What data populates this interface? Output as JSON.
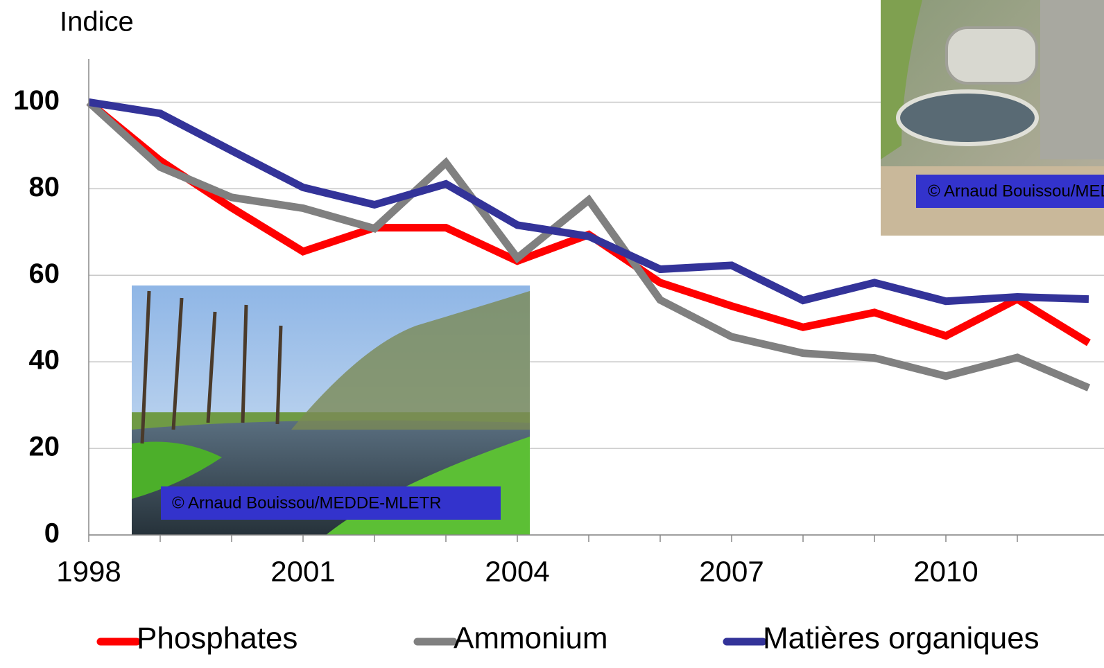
{
  "chart_data": {
    "type": "line",
    "y_label": "Indice",
    "x": [
      1998,
      1999,
      2000,
      2001,
      2002,
      2003,
      2004,
      2005,
      2006,
      2007,
      2008,
      2009,
      2010,
      2011,
      2012
    ],
    "series": [
      {
        "name": "Phosphates",
        "color": "#ff0000",
        "values": [
          100,
          86.5,
          75.6,
          65.5,
          71,
          71,
          63.3,
          69.4,
          58.3,
          52.9,
          48,
          51.4,
          46,
          54.5,
          44.4
        ]
      },
      {
        "name": "Ammonium",
        "color": "#808080",
        "values": [
          100,
          85,
          78,
          75.5,
          70.8,
          86,
          64,
          77.4,
          54.3,
          45.8,
          42,
          40.9,
          36.7,
          41,
          34
        ]
      },
      {
        "name": "Matières organiques",
        "color": "#333399",
        "values": [
          100,
          97.4,
          88.8,
          80.3,
          76.3,
          81.1,
          71.6,
          69,
          61.4,
          62.3,
          54.2,
          58.3,
          54,
          55,
          54.5
        ]
      }
    ],
    "xlim": [
      1998,
      2012
    ],
    "xticks": [
      1998,
      2001,
      2004,
      2007,
      2010
    ],
    "xminorticks": [
      1999,
      2000,
      2002,
      2003,
      2005,
      2006,
      2008,
      2009,
      2011
    ],
    "ylim": [
      0,
      110
    ],
    "yticks": [
      0,
      20,
      40,
      60,
      80,
      100
    ],
    "grid": true,
    "legend": "bottom",
    "annotations": [
      "© Arnaud Bouissou/MEDDE-MLETR",
      "© Arnaud Bouissou/MEDDE-MLETR"
    ]
  }
}
